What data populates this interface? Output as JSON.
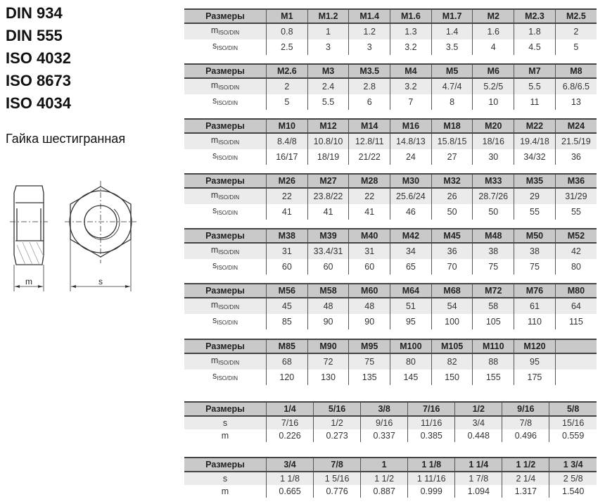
{
  "standards": [
    "DIN 934",
    "DIN 555",
    "ISO 4032",
    "ISO 8673",
    "ISO 4034"
  ],
  "subtitle": "Гайка шестигранная",
  "drawing": {
    "m_label": "m",
    "s_label": "s"
  },
  "colors": {
    "header_bg": "#c9c9c9",
    "alt_row_bg": "#ebebeb"
  },
  "tables": [
    {
      "header": "Размеры",
      "sizes": [
        "M1",
        "M1.2",
        "M1.4",
        "M1.6",
        "M1.7",
        "M2",
        "M2.3",
        "M2.5"
      ],
      "rows": [
        {
          "label": "m",
          "sub": "ISO/DIN",
          "values": [
            "0.8",
            "1",
            "1.2",
            "1.3",
            "1.4",
            "1.6",
            "1.8",
            "2"
          ]
        },
        {
          "label": "s",
          "sub": "ISO/DIN",
          "values": [
            "2.5",
            "3",
            "3",
            "3.2",
            "3.5",
            "4",
            "4.5",
            "5"
          ]
        }
      ]
    },
    {
      "header": "Размеры",
      "sizes": [
        "M2.6",
        "M3",
        "M3.5",
        "M4",
        "M5",
        "M6",
        "M7",
        "M8"
      ],
      "rows": [
        {
          "label": "m",
          "sub": "ISO/DIN",
          "values": [
            "2",
            "2.4",
            "2.8",
            "3.2",
            "4.7/4",
            "5.2/5",
            "5.5",
            "6.8/6.5"
          ]
        },
        {
          "label": "s",
          "sub": "ISO/DIN",
          "values": [
            "5",
            "5.5",
            "6",
            "7",
            "8",
            "10",
            "11",
            "13"
          ]
        }
      ]
    },
    {
      "header": "Размеры",
      "sizes": [
        "M10",
        "M12",
        "M14",
        "M16",
        "M18",
        "M20",
        "M22",
        "M24"
      ],
      "rows": [
        {
          "label": "m",
          "sub": "ISO/DIN",
          "values": [
            "8.4/8",
            "10.8/10",
            "12.8/11",
            "14.8/13",
            "15.8/15",
            "18/16",
            "19.4/18",
            "21.5/19"
          ]
        },
        {
          "label": "s",
          "sub": "ISO/DIN",
          "values": [
            "16/17",
            "18/19",
            "21/22",
            "24",
            "27",
            "30",
            "34/32",
            "36"
          ]
        }
      ]
    },
    {
      "header": "Размеры",
      "sizes": [
        "M26",
        "M27",
        "M28",
        "M30",
        "M32",
        "M33",
        "M35",
        "M36"
      ],
      "rows": [
        {
          "label": "m",
          "sub": "ISO/DIN",
          "values": [
            "22",
            "23.8/22",
            "22",
            "25.6/24",
            "26",
            "28.7/26",
            "29",
            "31/29"
          ]
        },
        {
          "label": "s",
          "sub": "ISO/DIN",
          "values": [
            "41",
            "41",
            "41",
            "46",
            "50",
            "50",
            "55",
            "55"
          ]
        }
      ]
    },
    {
      "header": "Размеры",
      "sizes": [
        "M38",
        "M39",
        "M40",
        "M42",
        "M45",
        "M48",
        "M50",
        "M52"
      ],
      "rows": [
        {
          "label": "m",
          "sub": "ISO/DIN",
          "values": [
            "31",
            "33.4/31",
            "31",
            "34",
            "36",
            "38",
            "38",
            "42"
          ]
        },
        {
          "label": "s",
          "sub": "ISO/DIN",
          "values": [
            "60",
            "60",
            "60",
            "65",
            "70",
            "75",
            "75",
            "80"
          ]
        }
      ]
    },
    {
      "header": "Размеры",
      "sizes": [
        "M56",
        "M58",
        "M60",
        "M64",
        "M68",
        "M72",
        "M76",
        "M80"
      ],
      "rows": [
        {
          "label": "m",
          "sub": "ISO/DIN",
          "values": [
            "45",
            "48",
            "48",
            "51",
            "54",
            "58",
            "61",
            "64"
          ]
        },
        {
          "label": "s",
          "sub": "ISO/DIN",
          "values": [
            "85",
            "90",
            "90",
            "95",
            "100",
            "105",
            "110",
            "115"
          ]
        }
      ]
    },
    {
      "header": "Размеры",
      "sizes": [
        "M85",
        "M90",
        "M95",
        "M100",
        "M105",
        "M110",
        "M120",
        ""
      ],
      "rows": [
        {
          "label": "m",
          "sub": "ISO/DIN",
          "values": [
            "68",
            "72",
            "75",
            "80",
            "82",
            "88",
            "95",
            ""
          ]
        },
        {
          "label": "s",
          "sub": "ISO/DIN",
          "values": [
            "120",
            "130",
            "135",
            "145",
            "150",
            "155",
            "175",
            ""
          ]
        }
      ]
    },
    {
      "header": "Размеры",
      "sizes": [
        "1/4",
        "5/16",
        "3/8",
        "7/16",
        "1/2",
        "9/16",
        "5/8"
      ],
      "rows": [
        {
          "label": "s",
          "sub": "",
          "values": [
            "7/16",
            "1/2",
            "9/16",
            "11/16",
            "3/4",
            "7/8",
            "15/16"
          ]
        },
        {
          "label": "m",
          "sub": "",
          "values": [
            "0.226",
            "0.273",
            "0.337",
            "0.385",
            "0.448",
            "0.496",
            "0.559"
          ]
        }
      ]
    },
    {
      "header": "Размеры",
      "sizes": [
        "3/4",
        "7/8",
        "1",
        "1 1/8",
        "1 1/4",
        "1 1/2",
        "1 3/4"
      ],
      "rows": [
        {
          "label": "s",
          "sub": "",
          "values": [
            "1 1/8",
            "1 5/16",
            "1 1/2",
            "1 11/16",
            "1 7/8",
            "2 1/4",
            "2 5/8"
          ]
        },
        {
          "label": "m",
          "sub": "",
          "values": [
            "0.665",
            "0.776",
            "0.887",
            "0.999",
            "1.094",
            "1.317",
            "1.540"
          ]
        }
      ]
    }
  ]
}
